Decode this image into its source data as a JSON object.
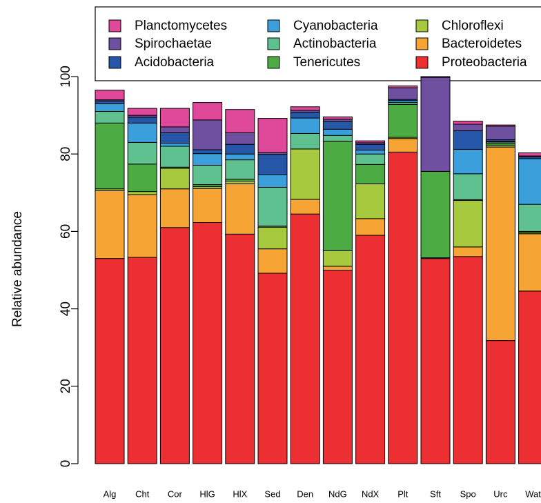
{
  "chart_data": {
    "type": "stacked_bar",
    "y_label": "Relative abundance",
    "categories": [
      "Alg",
      "Cht",
      "Cor",
      "HlG",
      "HlX",
      "Sed",
      "Den",
      "NdG",
      "NdX",
      "Plt",
      "Sft",
      "Spo",
      "Urc",
      "Wat"
    ],
    "ylim": [
      0,
      100
    ],
    "yticks": [
      0,
      20,
      40,
      60,
      80,
      100
    ],
    "legend_position": "top",
    "series": [
      {
        "name": "Proteobacteria",
        "color": "#ec2f33",
        "values": [
          53,
          53.3,
          61,
          62.3,
          59.3,
          49.2,
          64.5,
          50,
          59,
          80.5,
          53,
          53.5,
          31.8,
          44.6
        ]
      },
      {
        "name": "Bacteroidetes",
        "color": "#f6a433",
        "values": [
          17.5,
          16.2,
          10,
          8.8,
          13,
          6.3,
          3.8,
          1,
          4.3,
          3.5,
          0,
          2.5,
          50,
          14.8
        ]
      },
      {
        "name": "Chloroflexi",
        "color": "#a7c93e",
        "values": [
          0.5,
          0.8,
          5.3,
          0.5,
          0.7,
          5.6,
          13,
          4,
          9,
          0.3,
          0.2,
          12,
          0.5,
          0.3
        ]
      },
      {
        "name": "Tenericutes",
        "color": "#4cab43",
        "values": [
          17,
          7.1,
          0.3,
          0.5,
          0.5,
          0.3,
          0,
          28.3,
          5,
          8.5,
          22.3,
          0.2,
          0.5,
          0.3
        ]
      },
      {
        "name": "Actinobacteria",
        "color": "#5ec18f",
        "values": [
          3,
          5.6,
          5.4,
          5,
          5,
          10,
          4,
          1.5,
          2.7,
          0.5,
          0,
          6.7,
          0.3,
          7
        ]
      },
      {
        "name": "Cyanobacteria",
        "color": "#3a9fda",
        "values": [
          2,
          5,
          0.8,
          3,
          1.5,
          3.3,
          4,
          1.6,
          1,
          0.5,
          0,
          6.3,
          0.2,
          11.8
        ]
      },
      {
        "name": "Acidobacteria",
        "color": "#2556a8",
        "values": [
          0.7,
          1.5,
          2.7,
          1,
          2.5,
          5.2,
          1.5,
          2,
          1.5,
          0.3,
          0,
          4.8,
          0.4,
          0.5
        ]
      },
      {
        "name": "Spirochaetae",
        "color": "#6f4fa0",
        "values": [
          0.3,
          0.5,
          1.5,
          7.7,
          3,
          0.5,
          0.5,
          0.6,
          0.4,
          3,
          24.3,
          1.7,
          3.5,
          0.2
        ]
      },
      {
        "name": "Planctomycetes",
        "color": "#e0489a",
        "values": [
          2.5,
          1.8,
          4.8,
          4.5,
          6,
          8.8,
          0.9,
          0.6,
          0.5,
          0.5,
          0.2,
          0.8,
          0.3,
          0.8
        ]
      }
    ]
  }
}
